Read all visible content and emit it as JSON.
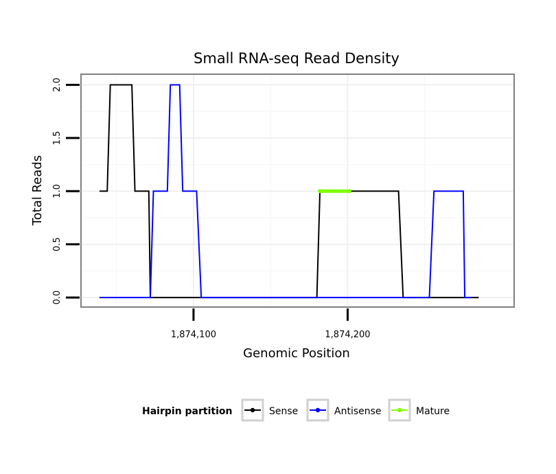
{
  "chart_data": {
    "type": "line",
    "title": "Small RNA-seq Read Density",
    "xlabel": "Genomic Position",
    "ylabel": "Total Reads",
    "xlim": [
      1874027,
      1874308
    ],
    "ylim": [
      -0.09,
      2.1
    ],
    "x_ticks": [
      1874100,
      1874200
    ],
    "x_tick_labels": [
      "1,874,100",
      "1,874,200"
    ],
    "y_ticks": [
      0,
      0.5,
      1,
      1.5,
      2
    ],
    "y_tick_labels": [
      "0.0",
      "0.5",
      "1.0",
      "1.5",
      "2.0"
    ],
    "grid": true,
    "legend": {
      "title": "Hairpin partition",
      "position": "bottom",
      "entries": [
        {
          "name": "Sense",
          "color": "#000000"
        },
        {
          "name": "Antisense",
          "color": "#0000ff"
        },
        {
          "name": "Mature",
          "color": "#7fff00"
        }
      ]
    },
    "series": [
      {
        "name": "Sense",
        "color": "#000000",
        "x": [
          1874039,
          1874044,
          1874046,
          1874060,
          1874062,
          1874071,
          1874072,
          1874074,
          1874077,
          1874180,
          1874182,
          1874199,
          1874201,
          1874233,
          1874236,
          1874253,
          1874256,
          1874285
        ],
        "y": [
          1,
          1,
          2,
          2,
          1,
          1,
          0,
          0,
          0,
          0,
          1,
          1,
          1,
          1,
          0,
          0,
          0,
          0
        ]
      },
      {
        "name": "Antisense",
        "color": "#0000ff",
        "x": [
          1874039,
          1874072,
          1874074,
          1874083,
          1874085,
          1874091,
          1874093,
          1874102,
          1874105,
          1874233,
          1874236,
          1874253,
          1874256,
          1874275,
          1874276,
          1874280
        ],
        "y": [
          0,
          0,
          1,
          1,
          2,
          2,
          1,
          1,
          0,
          0,
          0,
          0,
          1,
          1,
          0,
          0
        ]
      },
      {
        "name": "Mature",
        "color": "#7fff00",
        "x": [
          1874182,
          1874201
        ],
        "y": [
          1,
          1
        ]
      }
    ]
  }
}
